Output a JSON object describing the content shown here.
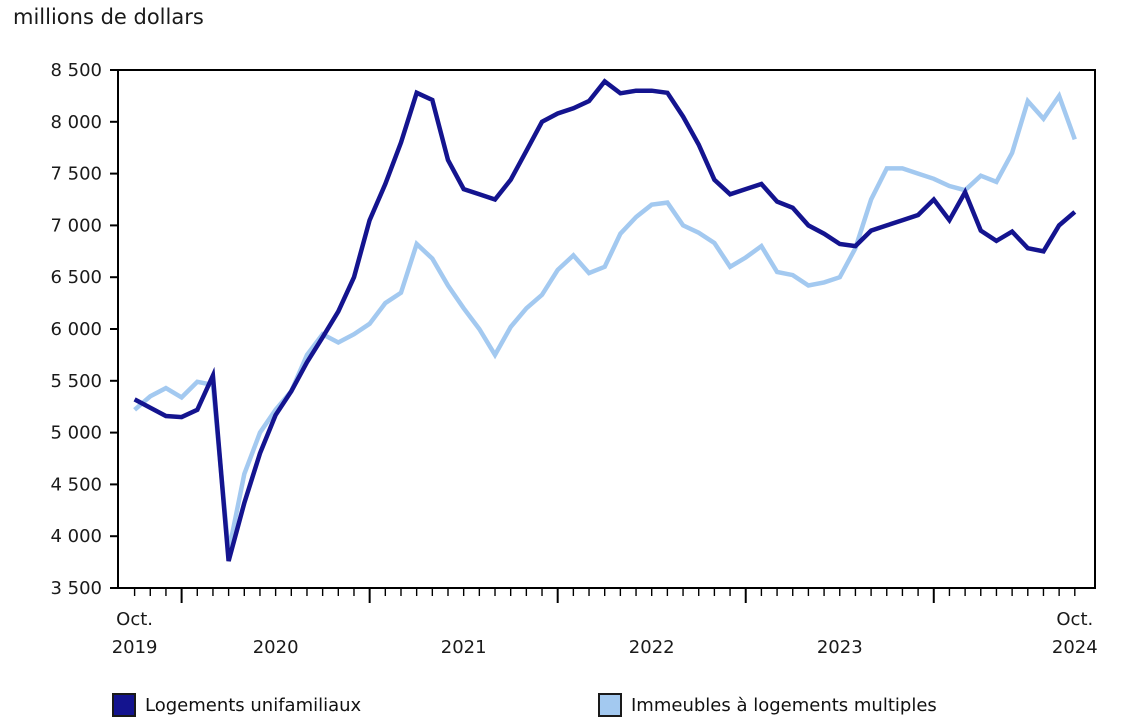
{
  "title": "millions de dollars",
  "y_axis": {
    "tick_values": [
      3500,
      4000,
      4500,
      5000,
      5500,
      6000,
      6500,
      7000,
      7500,
      8000,
      8500
    ],
    "tick_labels": [
      "3 500",
      "4 000",
      "4 500",
      "5 000",
      "5 500",
      "6 000",
      "6 500",
      "7 000",
      "7 500",
      "8 000",
      "8 500"
    ]
  },
  "x_axis": {
    "labels": [
      {
        "top": "Oct.",
        "bottom": "2019",
        "month_index": 0
      },
      {
        "top": "",
        "bottom": "2020",
        "month_index": 9
      },
      {
        "top": "",
        "bottom": "2021",
        "month_index": 21
      },
      {
        "top": "",
        "bottom": "2022",
        "month_index": 33
      },
      {
        "top": "",
        "bottom": "2023",
        "month_index": 45
      },
      {
        "top": "Oct.",
        "bottom": "2024",
        "month_index": 60
      }
    ]
  },
  "chart_data": {
    "type": "line",
    "title": "millions de dollars",
    "xlabel": "",
    "ylabel": "millions de dollars",
    "ylim": [
      3500,
      8500
    ],
    "ytick_step": 500,
    "grid": false,
    "legend_position": "bottom",
    "x_unit": "month",
    "months": [
      "oct. 2019",
      "nov. 2019",
      "déc. 2019",
      "janv. 2020",
      "févr. 2020",
      "mars 2020",
      "avr. 2020",
      "mai 2020",
      "juin 2020",
      "juil. 2020",
      "août 2020",
      "sept. 2020",
      "oct. 2020",
      "nov. 2020",
      "déc. 2020",
      "janv. 2021",
      "févr. 2021",
      "mars 2021",
      "avr. 2021",
      "mai 2021",
      "juin 2021",
      "juil. 2021",
      "août 2021",
      "sept. 2021",
      "oct. 2021",
      "nov. 2021",
      "déc. 2021",
      "janv. 2022",
      "févr. 2022",
      "mars 2022",
      "avr. 2022",
      "mai 2022",
      "juin 2022",
      "juil. 2022",
      "août 2022",
      "sept. 2022",
      "oct. 2022",
      "nov. 2022",
      "déc. 2022",
      "janv. 2023",
      "févr. 2023",
      "mars 2023",
      "avr. 2023",
      "mai 2023",
      "juin 2023",
      "juil. 2023",
      "août 2023",
      "sept. 2023",
      "oct. 2023",
      "nov. 2023",
      "déc. 2023",
      "janv. 2024",
      "févr. 2024",
      "mars 2024",
      "avr. 2024",
      "mai 2024",
      "juin 2024",
      "juil. 2024",
      "août 2024",
      "sept. 2024",
      "oct. 2024"
    ],
    "series": [
      {
        "name": "Logements unifamiliaux",
        "color": "#14148f",
        "values": [
          5320,
          5240,
          5160,
          5150,
          5220,
          5550,
          3760,
          4320,
          4800,
          5170,
          5400,
          5680,
          5920,
          6170,
          6500,
          7050,
          7400,
          7800,
          8280,
          8210,
          7630,
          7350,
          7300,
          7250,
          7440,
          7720,
          8000,
          8080,
          8130,
          8200,
          8390,
          8275,
          8300,
          8300,
          8280,
          8050,
          7780,
          7440,
          7300,
          7350,
          7400,
          7230,
          7170,
          7000,
          6920,
          6820,
          6800,
          6950,
          7000,
          7050,
          7100,
          7250,
          7050,
          7320,
          6950,
          6850,
          6940,
          6780,
          6750,
          7000,
          7130
        ]
      },
      {
        "name": "Immeubles à logements multiples",
        "color": "#a3c9f0",
        "values": [
          5220,
          5350,
          5430,
          5340,
          5490,
          5460,
          3850,
          4600,
          5000,
          5220,
          5400,
          5750,
          5950,
          5870,
          5950,
          6050,
          6250,
          6350,
          6820,
          6680,
          6420,
          6200,
          6000,
          5750,
          6020,
          6200,
          6330,
          6570,
          6710,
          6540,
          6600,
          6920,
          7080,
          7200,
          7220,
          7000,
          6930,
          6830,
          6600,
          6690,
          6800,
          6550,
          6520,
          6420,
          6450,
          6500,
          6780,
          7250,
          7550,
          7550,
          7500,
          7450,
          7380,
          7340,
          7480,
          7420,
          7700,
          8200,
          8030,
          8250,
          7830
        ]
      }
    ],
    "axis_color": "#000000",
    "text_color": "#1a1a1a"
  }
}
